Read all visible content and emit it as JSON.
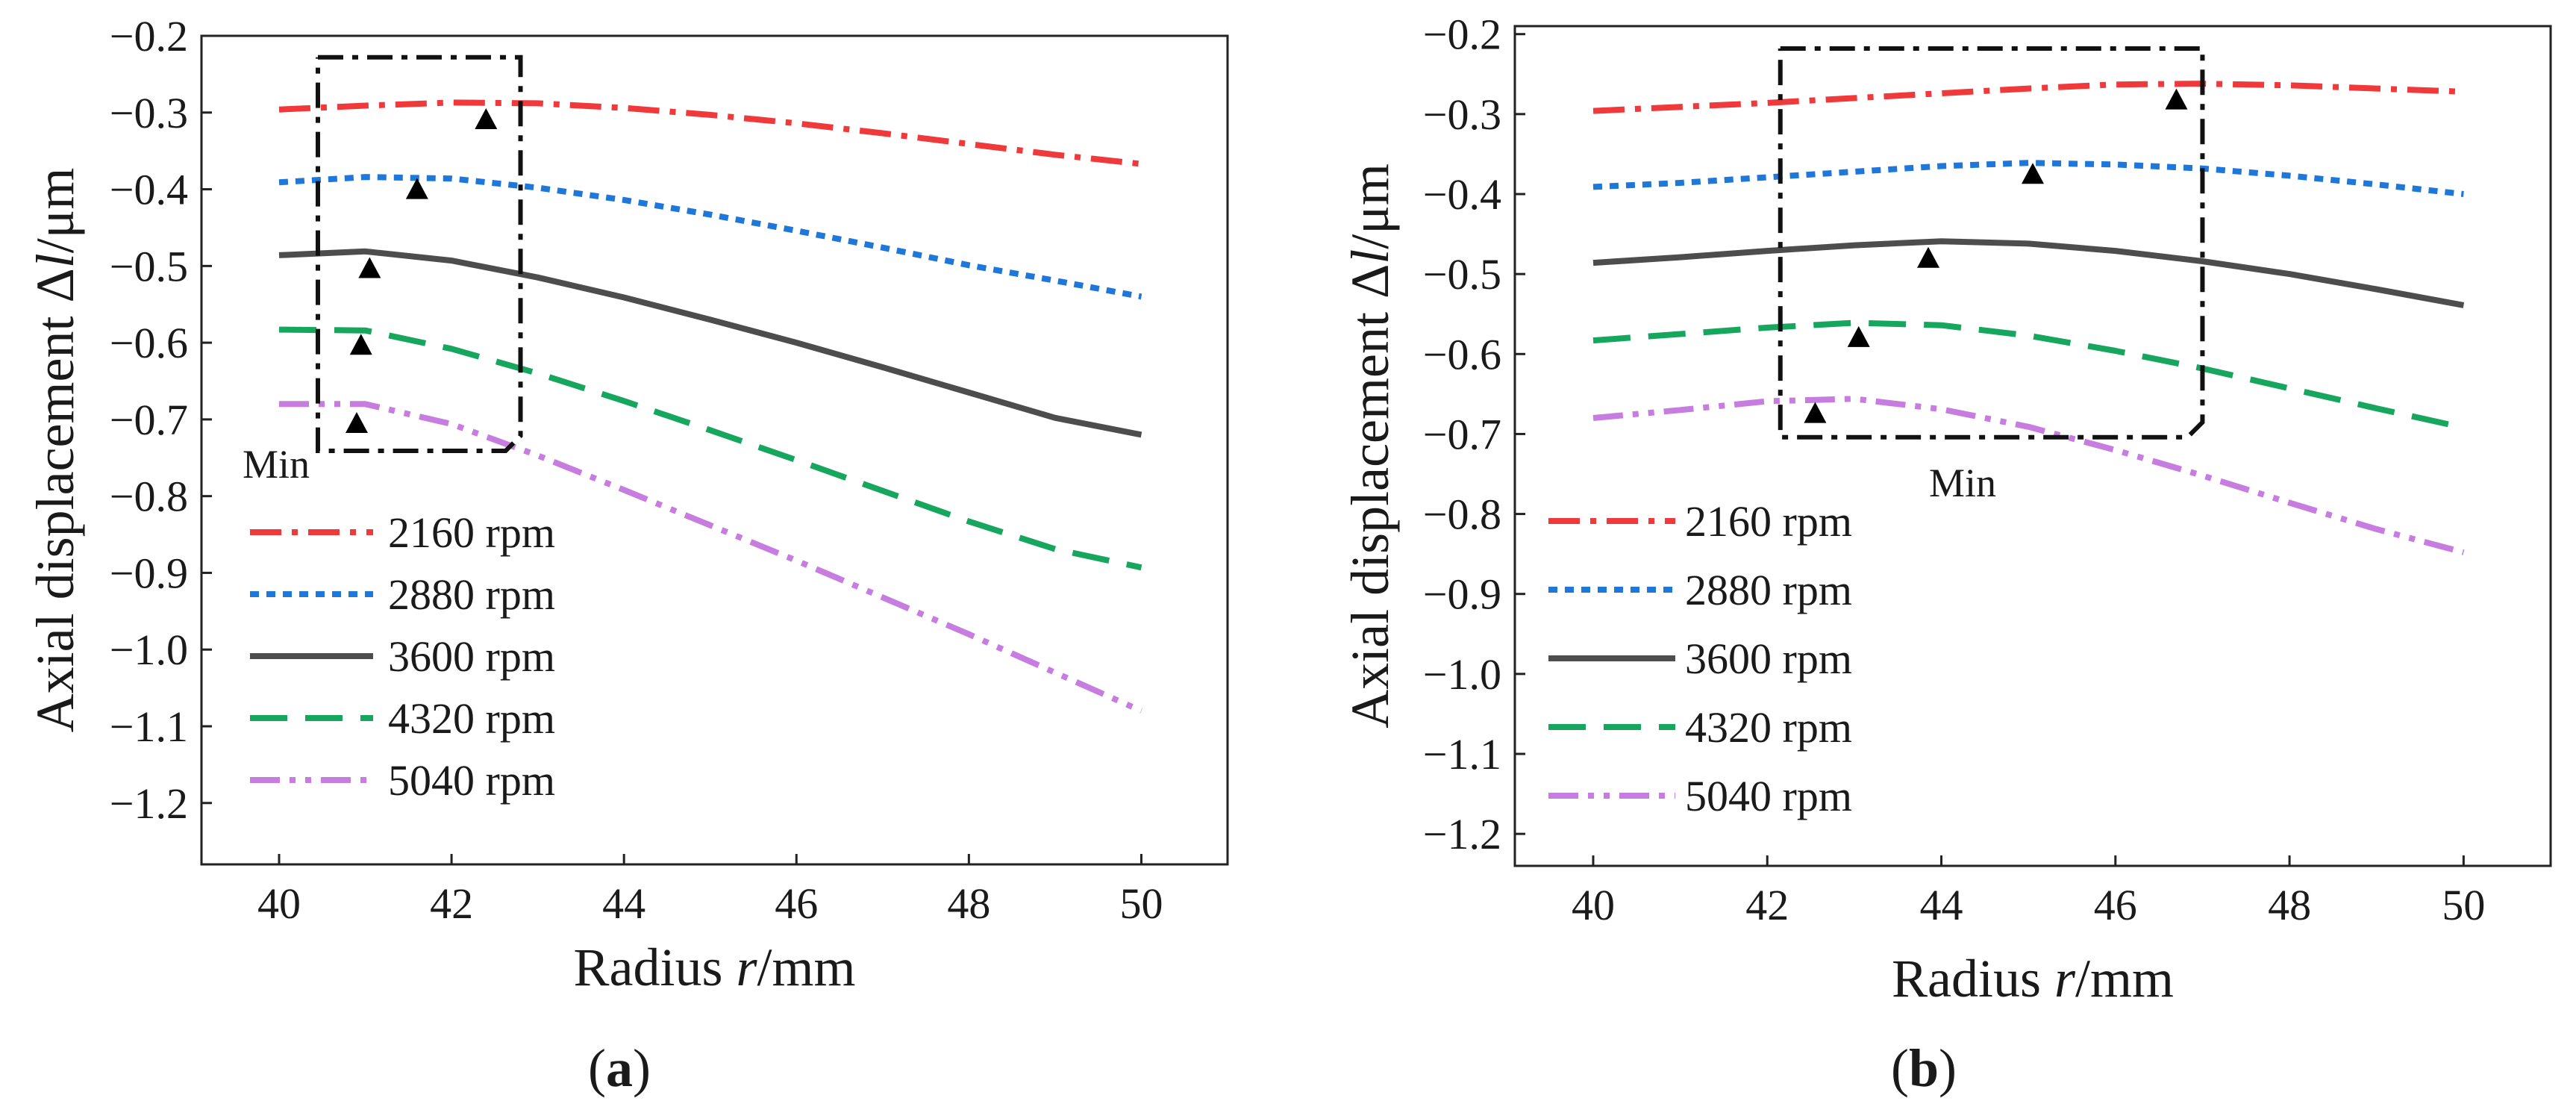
{
  "chart_data": [
    {
      "type": "line",
      "panel_label": "a",
      "xlabel": "Radius r/mm",
      "xlabel_prefix": "Radius ",
      "xlabel_var": "r",
      "xlabel_unit": "/mm",
      "ylabel": "Axial displacement Δl/μm",
      "ylabel_prefix": "Axial displacement  Δ",
      "ylabel_var": "l",
      "ylabel_unit": "/μm",
      "xlim": [
        39.1,
        51
      ],
      "ylim": [
        -1.28,
        -0.2
      ],
      "xticks": [
        40,
        42,
        44,
        46,
        48,
        50
      ],
      "yticks": [
        -0.2,
        -0.3,
        -0.4,
        -0.5,
        -0.6,
        -0.7,
        -0.8,
        -0.9,
        -1.0,
        -1.1,
        -1.2
      ],
      "ytick_labels": [
        "−0.2",
        "−0.3",
        "−0.4",
        "−0.5",
        "−0.6",
        "−0.7",
        "−0.8",
        "−0.9",
        "−1.0",
        "−1.1",
        "−1.2"
      ],
      "legend_position": "left",
      "series": [
        {
          "name": "2160 rpm",
          "color": "#f0393a",
          "style": "dashdot",
          "x": [
            40,
            41,
            42,
            43,
            44,
            45,
            46,
            47,
            48,
            49,
            50
          ],
          "y": [
            -0.296,
            -0.291,
            -0.287,
            -0.288,
            -0.294,
            -0.303,
            -0.314,
            -0.327,
            -0.341,
            -0.355,
            -0.367
          ]
        },
        {
          "name": "2880 rpm",
          "color": "#1f77d9",
          "style": "dot",
          "x": [
            40,
            41,
            42,
            43,
            44,
            45,
            46,
            47,
            48,
            49,
            50
          ],
          "y": [
            -0.391,
            -0.384,
            -0.386,
            -0.398,
            -0.414,
            -0.433,
            -0.454,
            -0.476,
            -0.499,
            -0.519,
            -0.54
          ]
        },
        {
          "name": "3600 rpm",
          "color": "#4d4d4d",
          "style": "solid",
          "x": [
            40,
            41,
            42,
            43,
            44,
            45,
            46,
            47,
            48,
            49,
            50
          ],
          "y": [
            -0.486,
            -0.481,
            -0.493,
            -0.515,
            -0.541,
            -0.57,
            -0.6,
            -0.632,
            -0.665,
            -0.698,
            -0.72
          ]
        },
        {
          "name": "4320 rpm",
          "color": "#17a65e",
          "style": "dash",
          "x": [
            40,
            41,
            42,
            43,
            44,
            45,
            46,
            47,
            48,
            49,
            50
          ],
          "y": [
            -0.583,
            -0.584,
            -0.608,
            -0.64,
            -0.676,
            -0.714,
            -0.753,
            -0.793,
            -0.833,
            -0.869,
            -0.893
          ]
        },
        {
          "name": "5040 rpm",
          "color": "#c77de0",
          "style": "dashdotdot",
          "x": [
            40,
            41,
            42,
            43,
            44,
            45,
            46,
            47,
            48,
            49,
            50
          ],
          "y": [
            -0.68,
            -0.68,
            -0.706,
            -0.747,
            -0.792,
            -0.838,
            -0.884,
            -0.932,
            -0.98,
            -1.03,
            -1.08
          ]
        }
      ],
      "markers": {
        "x": [
          40.9,
          40.95,
          41.05,
          41.6,
          42.4
        ],
        "y": [
          -0.706,
          -0.604,
          -0.504,
          -0.401,
          -0.31
        ]
      },
      "annotation": {
        "text": "Min",
        "box": {
          "x0": 40.45,
          "x1": 42.8,
          "y0": -0.228,
          "y1": -0.741
        }
      }
    },
    {
      "type": "line",
      "panel_label": "b",
      "xlabel": "Radius r/mm",
      "xlabel_prefix": "Radius ",
      "xlabel_var": "r",
      "xlabel_unit": "/mm",
      "ylabel": "Axial displacement Δl/μm",
      "ylabel_prefix": "Axial displacement  Δ",
      "ylabel_var": "l",
      "ylabel_unit": "/μm",
      "xlim": [
        39.1,
        51
      ],
      "ylim": [
        -1.24,
        -0.19
      ],
      "xticks": [
        40,
        42,
        44,
        46,
        48,
        50
      ],
      "yticks": [
        -0.2,
        -0.3,
        -0.4,
        -0.5,
        -0.6,
        -0.7,
        -0.8,
        -0.9,
        -1.0,
        -1.1,
        -1.2
      ],
      "ytick_labels": [
        "−0.2",
        "−0.3",
        "−0.4",
        "−0.5",
        "−0.6",
        "−0.7",
        "−0.8",
        "−0.9",
        "−1.0",
        "−1.1",
        "−1.2"
      ],
      "legend_position": "left",
      "series": [
        {
          "name": "2160 rpm",
          "color": "#f0393a",
          "style": "dashdot",
          "x": [
            40,
            41,
            42,
            43,
            44,
            45,
            46,
            47,
            48,
            49,
            50
          ],
          "y": [
            -0.296,
            -0.291,
            -0.286,
            -0.28,
            -0.274,
            -0.268,
            -0.263,
            -0.262,
            -0.264,
            -0.268,
            -0.272
          ]
        },
        {
          "name": "2880 rpm",
          "color": "#1f77d9",
          "style": "dot",
          "x": [
            40,
            41,
            42,
            43,
            44,
            45,
            46,
            47,
            48,
            49,
            50
          ],
          "y": [
            -0.391,
            -0.386,
            -0.379,
            -0.372,
            -0.365,
            -0.361,
            -0.363,
            -0.368,
            -0.377,
            -0.388,
            -0.4
          ]
        },
        {
          "name": "3600 rpm",
          "color": "#4d4d4d",
          "style": "solid",
          "x": [
            40,
            41,
            42,
            43,
            44,
            45,
            46,
            47,
            48,
            49,
            50
          ],
          "y": [
            -0.486,
            -0.479,
            -0.471,
            -0.464,
            -0.459,
            -0.462,
            -0.471,
            -0.484,
            -0.5,
            -0.519,
            -0.539
          ]
        },
        {
          "name": "4320 rpm",
          "color": "#17a65e",
          "style": "dash",
          "x": [
            40,
            41,
            42,
            43,
            44,
            45,
            46,
            47,
            48,
            49,
            50
          ],
          "y": [
            -0.583,
            -0.575,
            -0.567,
            -0.561,
            -0.564,
            -0.577,
            -0.596,
            -0.618,
            -0.643,
            -0.668,
            -0.692
          ]
        },
        {
          "name": "5040 rpm",
          "color": "#c77de0",
          "style": "dashdotdot",
          "x": [
            40,
            41,
            42,
            43,
            44,
            45,
            46,
            47,
            48,
            49,
            50
          ],
          "y": [
            -0.68,
            -0.67,
            -0.659,
            -0.656,
            -0.669,
            -0.691,
            -0.72,
            -0.752,
            -0.786,
            -0.819,
            -0.848
          ]
        }
      ],
      "markers": {
        "x": [
          42.55,
          43.05,
          43.85,
          45.05,
          46.7
        ],
        "y": [
          -0.675,
          -0.58,
          -0.481,
          -0.376,
          -0.283
        ]
      },
      "annotation": {
        "text": "Min",
        "box": {
          "x0": 42.15,
          "x1": 47.0,
          "y0": -0.218,
          "y1": -0.704
        }
      }
    }
  ]
}
